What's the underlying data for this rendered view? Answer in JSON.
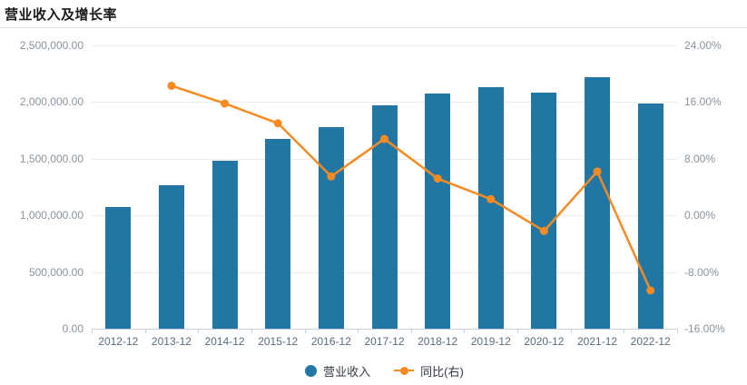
{
  "title": "营业收入及增长率",
  "colors": {
    "bar": "#2176a3",
    "line": "#f78b22",
    "grid": "#ebedf0",
    "axis_line": "#c9d3df",
    "y_label": "#8a939d",
    "x_label": "#5a6b7d",
    "legend_text": "#333a45",
    "title": "#1a1a1a"
  },
  "legend": {
    "items": [
      {
        "label": "营业收入",
        "type": "bar"
      },
      {
        "label": "同比(右)",
        "type": "line"
      }
    ]
  },
  "axes": {
    "y_left": {
      "ticks": [
        "2,500,000.00",
        "2,000,000.00",
        "1,500,000.00",
        "1,000,000.00",
        "500,000.00",
        "0.00"
      ],
      "min": 0,
      "max": 2500000
    },
    "y_right": {
      "ticks": [
        "24.00%",
        "16.00%",
        "8.00%",
        "0.00%",
        "-8.00%",
        "-16.00%"
      ],
      "min": -16,
      "max": 24
    }
  },
  "chart_data": {
    "type": "bar",
    "title": "营业收入及增长率",
    "categories": [
      "2012-12",
      "2013-12",
      "2014-12",
      "2015-12",
      "2016-12",
      "2017-12",
      "2018-12",
      "2019-12",
      "2020-12",
      "2021-12",
      "2022-12"
    ],
    "series": [
      {
        "name": "营业收入",
        "type": "bar",
        "axis": "left",
        "values": [
          1070000,
          1270000,
          1480000,
          1675000,
          1775000,
          1970000,
          2075000,
          2130000,
          2085000,
          2220000,
          1990000
        ]
      },
      {
        "name": "同比(右)",
        "type": "line",
        "axis": "right",
        "values": [
          null,
          18.3,
          15.8,
          13.0,
          5.5,
          10.8,
          5.2,
          2.3,
          -2.2,
          6.2,
          -10.6
        ]
      }
    ],
    "y_left_range": [
      0,
      2500000
    ],
    "y_right_range": [
      -16,
      24
    ],
    "grid": true,
    "legend_position": "bottom"
  }
}
